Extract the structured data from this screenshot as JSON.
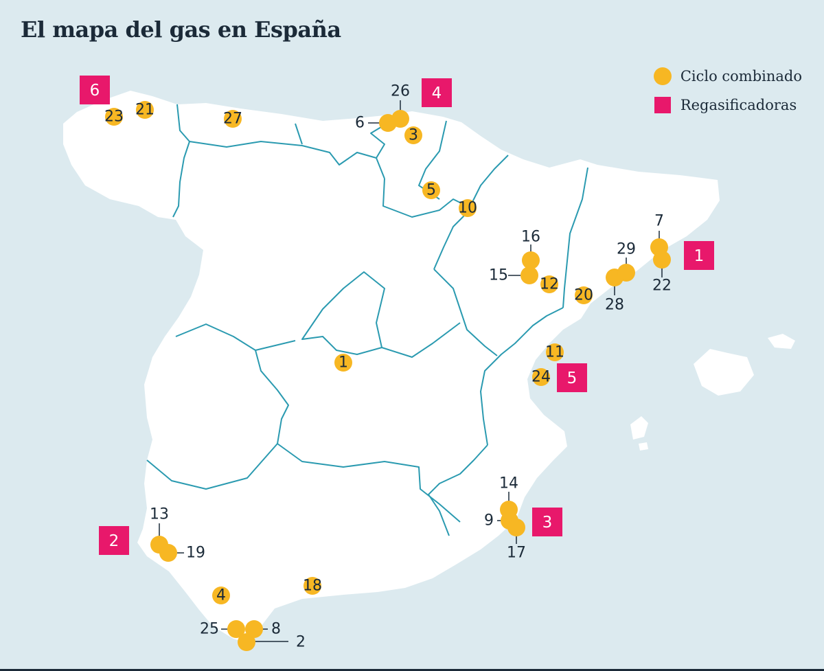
{
  "title": "El mapa del gas en España",
  "legend": {
    "combined_cycle": "Ciclo combinado",
    "regasification": "Regasificadoras"
  },
  "colors": {
    "sea": "#dceaef",
    "land": "#ffffff",
    "borders": "#2a9ab0",
    "plant": "#f7b723",
    "terminal": "#e8186b",
    "text": "#1b2a38"
  },
  "combined_cycle_plants": [
    "1",
    "2",
    "3",
    "4",
    "5",
    "6",
    "7",
    "8",
    "9",
    "10",
    "11",
    "12",
    "13",
    "14",
    "15",
    "16",
    "17",
    "18",
    "19",
    "20",
    "21",
    "22",
    "23",
    "24",
    "25",
    "26",
    "27",
    "28",
    "29"
  ],
  "regasification_terminals": [
    "1",
    "2",
    "3",
    "4",
    "5",
    "6"
  ]
}
